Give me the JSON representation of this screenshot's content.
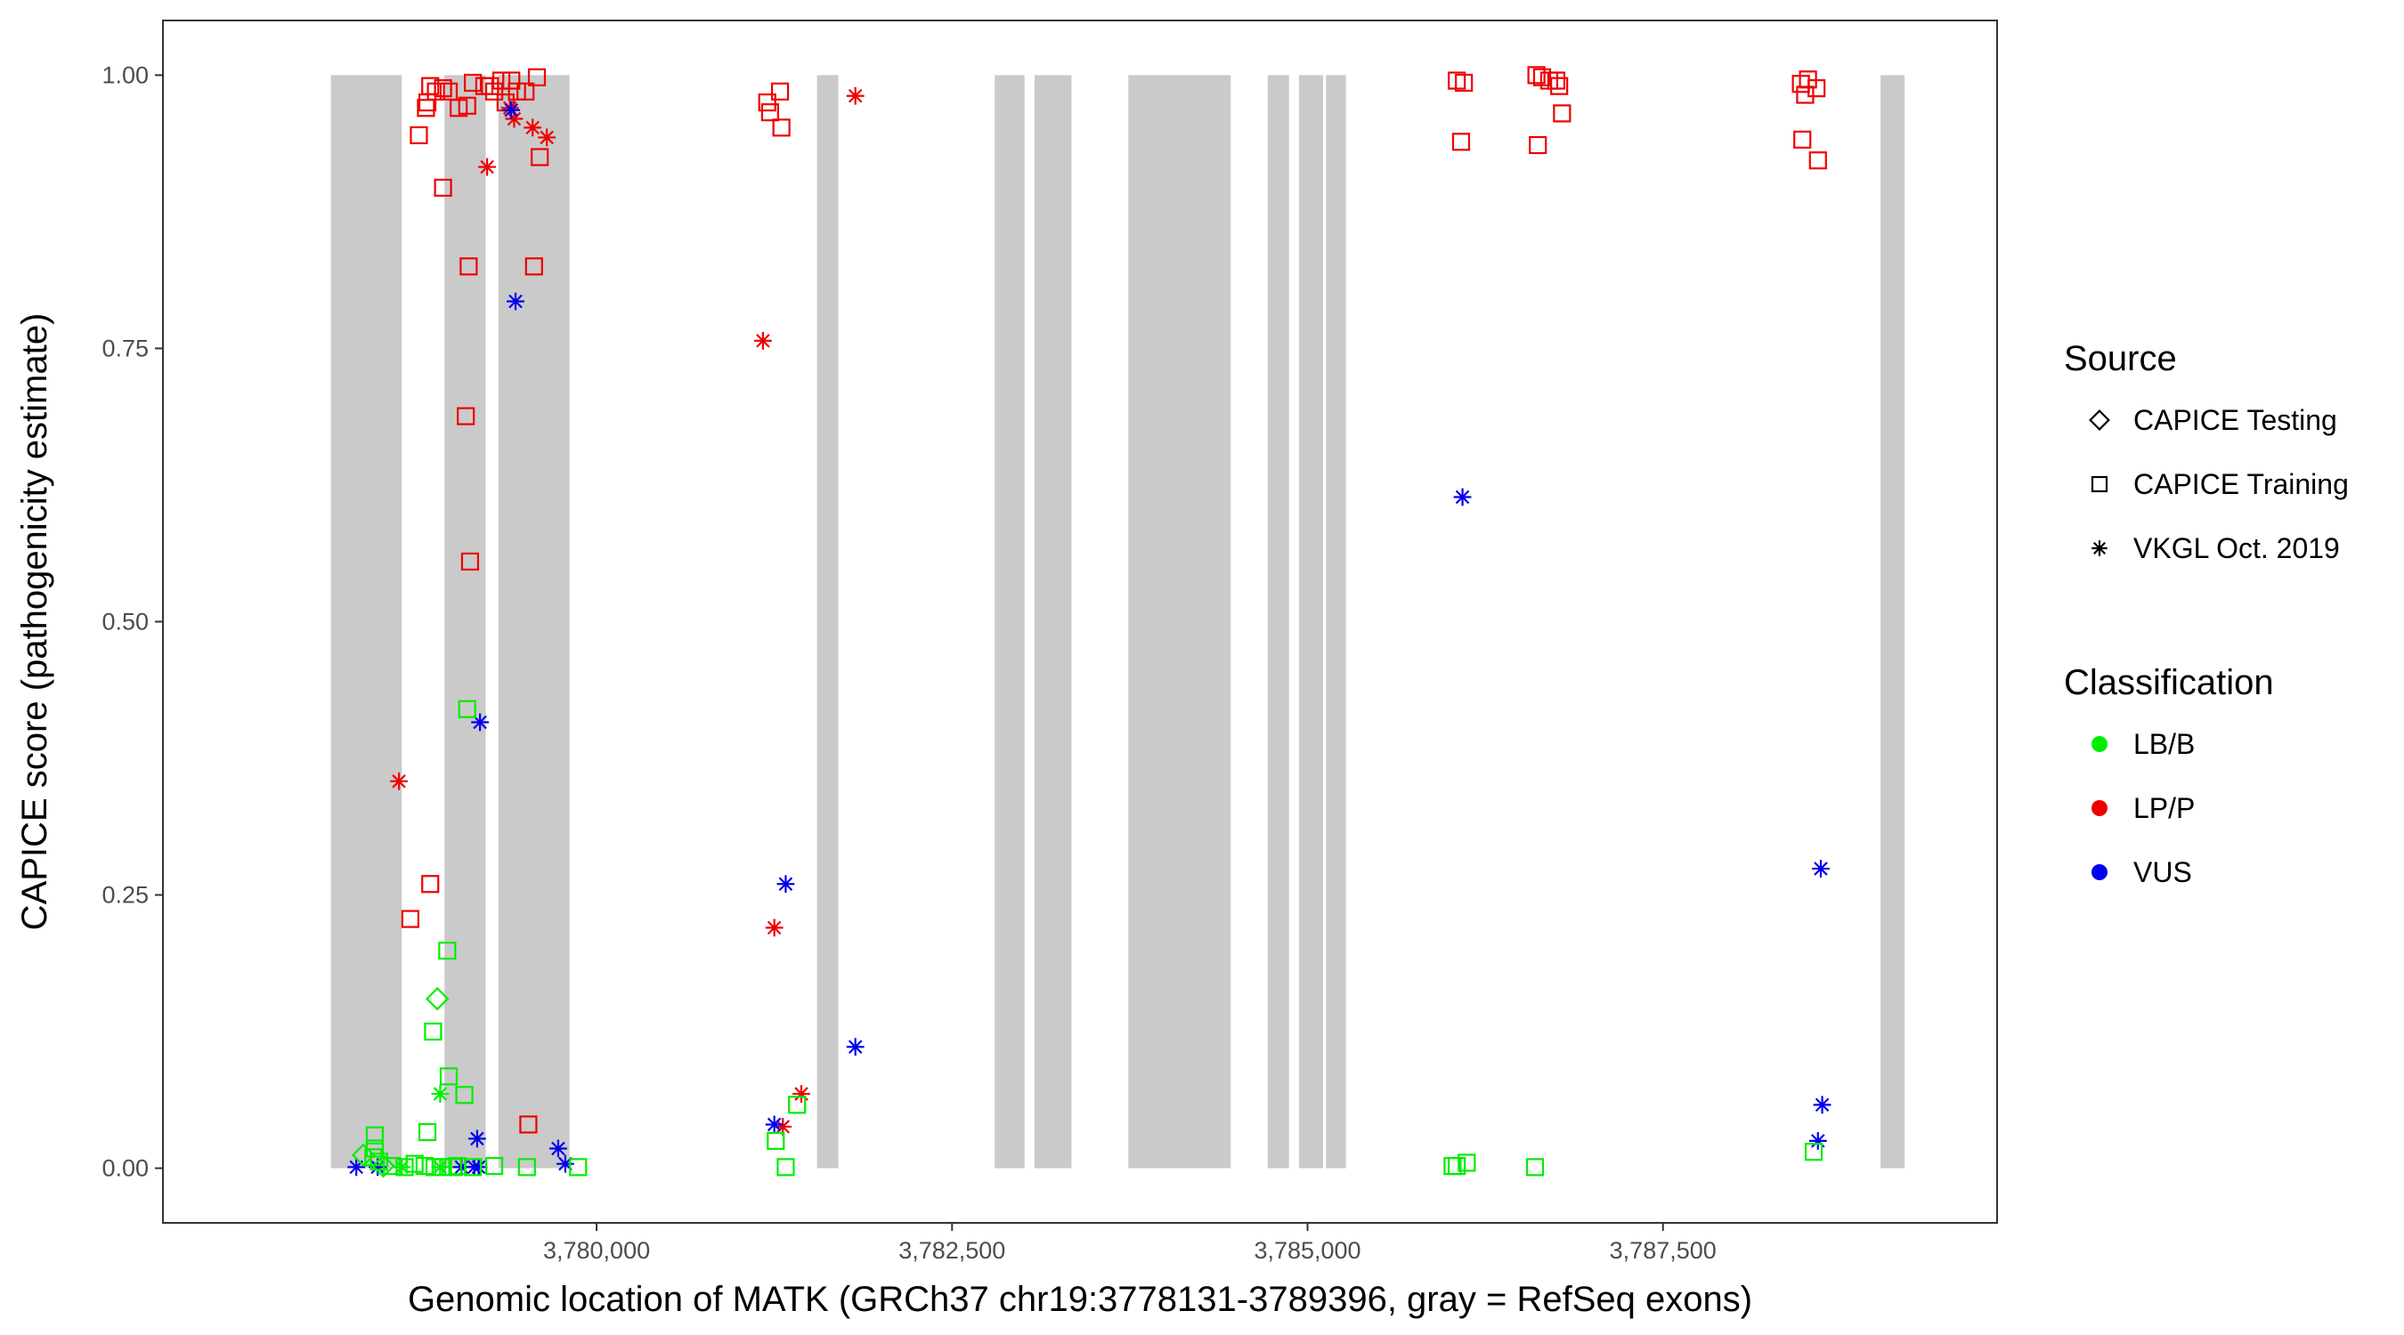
{
  "chart_data": {
    "type": "scatter",
    "xlabel": "Genomic location of MATK (GRCh37 chr19:3778131-3789396, gray = RefSeq exons)",
    "ylabel": "CAPICE score (pathogenicity estimate)",
    "xlim": [
      3776950,
      3789850
    ],
    "ylim": [
      -0.05,
      1.05
    ],
    "x_ticks": [
      3780000,
      3782500,
      3785000,
      3787500
    ],
    "x_tick_labels": [
      "3,780,000",
      "3,782,500",
      "3,785,000",
      "3,787,500"
    ],
    "y_ticks": [
      0,
      0.25,
      0.5,
      0.75,
      1
    ],
    "y_tick_labels": [
      "0.00",
      "0.25",
      "0.50",
      "0.75",
      "1.00"
    ],
    "grid": false,
    "exon_color": "#cacaca",
    "exons": [
      [
        3778131,
        3778630
      ],
      [
        3778930,
        3779220
      ],
      [
        3779310,
        3779810
      ],
      [
        3781550,
        3781700
      ],
      [
        3782800,
        3783010
      ],
      [
        3783080,
        3783340
      ],
      [
        3783740,
        3784460
      ],
      [
        3784720,
        3784870
      ],
      [
        3784940,
        3785110
      ],
      [
        3785130,
        3785270
      ],
      [
        3789030,
        3789200
      ]
    ],
    "legend": {
      "position": "right",
      "source_title": "Source",
      "source_items": [
        {
          "label": "CAPICE Testing",
          "shape": "diamond"
        },
        {
          "label": "CAPICE Training",
          "shape": "square"
        },
        {
          "label": "VKGL Oct. 2019",
          "shape": "star"
        }
      ],
      "class_title": "Classification",
      "class_items": [
        {
          "label": "LB/B",
          "color": "#00ee00"
        },
        {
          "label": "LP/P",
          "color": "#ee0000"
        },
        {
          "label": "VUS",
          "color": "#0000ee"
        }
      ]
    },
    "series": [
      {
        "name": "LP/P",
        "color": "#ee0000",
        "points": [
          [
            3778750,
            0.945,
            "square"
          ],
          [
            3778810,
            0.975,
            "square"
          ],
          [
            3778800,
            0.97,
            "square"
          ],
          [
            3778830,
            0.99,
            "square"
          ],
          [
            3778870,
            0.985,
            "square"
          ],
          [
            3778920,
            0.988,
            "square"
          ],
          [
            3778960,
            0.985,
            "square"
          ],
          [
            3779030,
            0.97,
            "square"
          ],
          [
            3779090,
            0.972,
            "square"
          ],
          [
            3779130,
            0.993,
            "square"
          ],
          [
            3779210,
            0.99,
            "square"
          ],
          [
            3779250,
            0.99,
            "square"
          ],
          [
            3779280,
            0.985,
            "square"
          ],
          [
            3779330,
            0.995,
            "square"
          ],
          [
            3779400,
            0.995,
            "square"
          ],
          [
            3779360,
            0.975,
            "square"
          ],
          [
            3779440,
            0.985,
            "square"
          ],
          [
            3779500,
            0.985,
            "square"
          ],
          [
            3779580,
            0.998,
            "square"
          ],
          [
            3779600,
            0.925,
            "square"
          ],
          [
            3778920,
            0.897,
            "square"
          ],
          [
            3779100,
            0.825,
            "square"
          ],
          [
            3779560,
            0.825,
            "square"
          ],
          [
            3779080,
            0.688,
            "square"
          ],
          [
            3779110,
            0.555,
            "square"
          ],
          [
            3778830,
            0.26,
            "square"
          ],
          [
            3778690,
            0.228,
            "square"
          ],
          [
            3779520,
            0.04,
            "square"
          ],
          [
            3781200,
            0.975,
            "square"
          ],
          [
            3781220,
            0.966,
            "square"
          ],
          [
            3781290,
            0.985,
            "square"
          ],
          [
            3781300,
            0.952,
            "square"
          ],
          [
            3786050,
            0.995,
            "square"
          ],
          [
            3786100,
            0.993,
            "square"
          ],
          [
            3786080,
            0.939,
            "square"
          ],
          [
            3786610,
            1.0,
            "square"
          ],
          [
            3786650,
            0.998,
            "square"
          ],
          [
            3786700,
            0.995,
            "square"
          ],
          [
            3786770,
            0.99,
            "square"
          ],
          [
            3786750,
            0.995,
            "square"
          ],
          [
            3786790,
            0.965,
            "square"
          ],
          [
            3786620,
            0.936,
            "square"
          ],
          [
            3788470,
            0.992,
            "square"
          ],
          [
            3788520,
            0.996,
            "square"
          ],
          [
            3788580,
            0.988,
            "square"
          ],
          [
            3788500,
            0.982,
            "square"
          ],
          [
            3788480,
            0.941,
            "square"
          ],
          [
            3788590,
            0.922,
            "square"
          ],
          [
            3779420,
            0.96,
            "star"
          ],
          [
            3779390,
            0.97,
            "star"
          ],
          [
            3779550,
            0.952,
            "star"
          ],
          [
            3779650,
            0.943,
            "star"
          ],
          [
            3779230,
            0.916,
            "star"
          ],
          [
            3778610,
            0.354,
            "star"
          ],
          [
            3781170,
            0.757,
            "star"
          ],
          [
            3781820,
            0.981,
            "star"
          ],
          [
            3781250,
            0.22,
            "star"
          ],
          [
            3781440,
            0.068,
            "star"
          ],
          [
            3781310,
            0.038,
            "star"
          ]
        ]
      },
      {
        "name": "VUS",
        "color": "#0000ee",
        "points": [
          [
            3779400,
            0.968,
            "star"
          ],
          [
            3779430,
            0.793,
            "star"
          ],
          [
            3779180,
            0.408,
            "star"
          ],
          [
            3781330,
            0.26,
            "star"
          ],
          [
            3781820,
            0.111,
            "star"
          ],
          [
            3781250,
            0.04,
            "star"
          ],
          [
            3786090,
            0.614,
            "star"
          ],
          [
            3788610,
            0.274,
            "star"
          ],
          [
            3788620,
            0.058,
            "star"
          ],
          [
            3788590,
            0.025,
            "star"
          ],
          [
            3779160,
            0.027,
            "star"
          ],
          [
            3779730,
            0.018,
            "star"
          ],
          [
            3779780,
            0.004,
            "star"
          ],
          [
            3778310,
            0.001,
            "star"
          ],
          [
            3778460,
            0.001,
            "star"
          ],
          [
            3779050,
            0.001,
            "star"
          ],
          [
            3779140,
            0.001,
            "star"
          ],
          [
            3779170,
            0.001,
            "star"
          ]
        ]
      },
      {
        "name": "LB/B",
        "color": "#00ee00",
        "points": [
          [
            3778440,
            0.03,
            "square"
          ],
          [
            3778440,
            0.018,
            "square"
          ],
          [
            3778430,
            0.01,
            "square"
          ],
          [
            3778470,
            0.006,
            "square"
          ],
          [
            3778560,
            0.002,
            "square"
          ],
          [
            3778650,
            0.001,
            "square"
          ],
          [
            3778720,
            0.004,
            "square"
          ],
          [
            3778790,
            0.002,
            "square"
          ],
          [
            3778860,
            0.001,
            "square"
          ],
          [
            3778920,
            0.001,
            "square"
          ],
          [
            3778990,
            0.001,
            "square"
          ],
          [
            3779020,
            0.002,
            "square"
          ],
          [
            3779130,
            0.001,
            "square"
          ],
          [
            3779280,
            0.002,
            "square"
          ],
          [
            3779510,
            0.001,
            "square"
          ],
          [
            3779870,
            0.001,
            "square"
          ],
          [
            3778810,
            0.033,
            "square"
          ],
          [
            3778850,
            0.125,
            "square"
          ],
          [
            3778950,
            0.199,
            "square"
          ],
          [
            3778960,
            0.084,
            "square"
          ],
          [
            3779070,
            0.067,
            "square"
          ],
          [
            3779090,
            0.42,
            "square"
          ],
          [
            3781260,
            0.025,
            "square"
          ],
          [
            3781410,
            0.058,
            "square"
          ],
          [
            3781330,
            0.001,
            "square"
          ],
          [
            3786020,
            0.002,
            "square"
          ],
          [
            3786050,
            0.002,
            "square"
          ],
          [
            3786120,
            0.005,
            "square"
          ],
          [
            3786600,
            0.001,
            "square"
          ],
          [
            3788560,
            0.015,
            "square"
          ],
          [
            3778880,
            0.155,
            "diamond"
          ],
          [
            3778360,
            0.012,
            "diamond"
          ],
          [
            3778500,
            0.002,
            "diamond"
          ],
          [
            3778900,
            0.068,
            "star"
          ],
          [
            3778630,
            0.001,
            "star"
          ],
          [
            3778900,
            0.001,
            "star"
          ]
        ]
      }
    ]
  }
}
